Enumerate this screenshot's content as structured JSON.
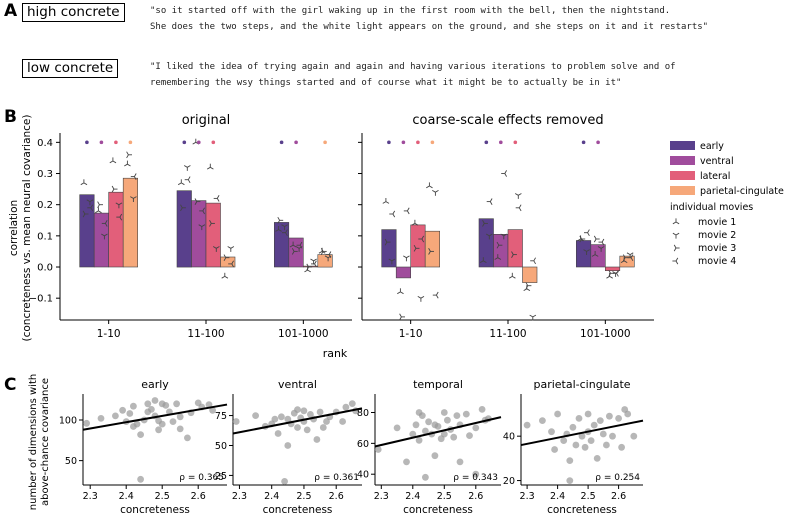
{
  "panel_letters": [
    "A",
    "B",
    "C"
  ],
  "quotes": [
    {
      "label": "high concrete",
      "line1": "\"so it started off with the girl waking up in the first room with the bell, then the nightstand.",
      "line2": "She does the two steps, and the white light appears on the ground, and she steps on it and it restarts\""
    },
    {
      "label": "low concrete",
      "line1": "\"I liked the idea of trying again and again and having various iterations to problem solve and of",
      "line2": "remembering the wsy things started and of course what it might be to actually be in it\""
    }
  ],
  "chart_data": [
    {
      "type": "bar",
      "title": "original",
      "ylabel": "correlation\n(concreteness vs. mean neural covariance)",
      "xlabel": "rank",
      "categories": [
        "1-10",
        "11-100",
        "101-1000"
      ],
      "ylim": [
        -0.17,
        0.43
      ],
      "yticks": [
        -0.1,
        0.0,
        0.1,
        0.2,
        0.3,
        0.4
      ],
      "series": [
        {
          "name": "early",
          "color": "#59408c",
          "values": [
            0.232,
            0.245,
            0.143
          ],
          "movies": [
            [
              0.27,
              0.21,
              0.17,
              0.19
            ],
            [
              0.27,
              0.32,
              0.19,
              0.28
            ],
            [
              0.12,
              0.13,
              0.15,
              0.11
            ]
          ]
        },
        {
          "name": "ventral",
          "color": "#a04c9c",
          "values": [
            0.173,
            0.213,
            0.093
          ],
          "movies": [
            [
              0.18,
              0.1,
              0.2,
              0.14
            ],
            [
              0.4,
              0.13,
              0.21,
              0.18
            ],
            [
              0.07,
              0.06,
              0.05,
              0.07
            ]
          ]
        },
        {
          "name": "lateral",
          "color": "#e25f7a",
          "values": [
            0.24,
            0.205,
            0.003
          ],
          "movies": [
            [
              0.34,
              0.2,
              0.25,
              0.16
            ],
            [
              0.32,
              0.06,
              0.14,
              0.22
            ],
            [
              -0.01,
              0.02,
              0.0,
              0.01
            ]
          ]
        },
        {
          "name": "parietal-cingulate",
          "color": "#f6a87a",
          "values": [
            0.285,
            0.032,
            0.04
          ],
          "movies": [
            [
              0.33,
              0.22,
              0.36,
              0.29
            ],
            [
              -0.03,
              0.06,
              0.03,
              0.01
            ],
            [
              0.05,
              0.03,
              0.05,
              0.04
            ]
          ]
        }
      ],
      "significance": [
        [
          true,
          true,
          true,
          true
        ],
        [
          true,
          true,
          true,
          false
        ],
        [
          true,
          true,
          false,
          true
        ]
      ]
    },
    {
      "type": "bar",
      "title": "coarse-scale effects removed",
      "categories": [
        "1-10",
        "11-100",
        "101-1000"
      ],
      "ylim": [
        -0.17,
        0.43
      ],
      "series": [
        {
          "name": "early",
          "color": "#59408c",
          "values": [
            0.12,
            0.155,
            0.085
          ],
          "movies": [
            [
              0.21,
              0.02,
              0.08,
              0.17
            ],
            [
              0.02,
              0.1,
              0.14,
              0.21
            ],
            [
              0.09,
              0.05,
              0.09,
              0.11
            ]
          ]
        },
        {
          "name": "ventral",
          "color": "#a04c9c",
          "values": [
            -0.035,
            0.105,
            0.072
          ],
          "movies": [
            [
              -0.08,
              0.03,
              -0.16,
              0.18
            ],
            [
              0.03,
              0.1,
              0.07,
              0.3
            ],
            [
              0.04,
              0.06,
              0.09,
              0.08
            ]
          ]
        },
        {
          "name": "lateral",
          "color": "#e25f7a",
          "values": [
            0.135,
            0.12,
            -0.012
          ],
          "movies": [
            [
              0.14,
              -0.1,
              0.06,
              0.09
            ],
            [
              -0.03,
              0.23,
              0.04,
              0.19
            ],
            [
              -0.03,
              -0.02,
              -0.02,
              -0.02
            ]
          ]
        },
        {
          "name": "parietal-cingulate",
          "color": "#f6a87a",
          "values": [
            0.115,
            -0.05,
            0.035
          ],
          "movies": [
            [
              0.26,
              0.24,
              0.05,
              -0.09
            ],
            [
              -0.07,
              -0.16,
              -0.06,
              0.02
            ],
            [
              0.02,
              0.04,
              0.03,
              0.03
            ]
          ]
        }
      ],
      "significance": [
        [
          true,
          true,
          true,
          true
        ],
        [
          true,
          true,
          true,
          false
        ],
        [
          true,
          true,
          false,
          false
        ]
      ]
    },
    {
      "type": "scatter",
      "title": "early",
      "xlabel": "concreteness",
      "ylabel": "number of dimensions with\nabove-chance covariance",
      "xlim": [
        2.28,
        2.68
      ],
      "ylim": [
        20,
        132
      ],
      "xticks": [
        2.3,
        2.4,
        2.5,
        2.6
      ],
      "yticks": [
        50,
        100
      ],
      "annotation": "ρ = 0.365",
      "fit": [
        [
          2.28,
          88
        ],
        [
          2.68,
          119
        ]
      ],
      "points": [
        [
          2.29,
          96
        ],
        [
          2.33,
          102
        ],
        [
          2.37,
          105
        ],
        [
          2.39,
          112
        ],
        [
          2.4,
          98
        ],
        [
          2.41,
          108
        ],
        [
          2.42,
          117
        ],
        [
          2.42,
          92
        ],
        [
          2.43,
          95
        ],
        [
          2.44,
          82
        ],
        [
          2.44,
          27
        ],
        [
          2.45,
          100
        ],
        [
          2.46,
          110
        ],
        [
          2.46,
          120
        ],
        [
          2.47,
          113
        ],
        [
          2.48,
          124
        ],
        [
          2.48,
          105
        ],
        [
          2.49,
          99
        ],
        [
          2.49,
          88
        ],
        [
          2.5,
          120
        ],
        [
          2.5,
          95
        ],
        [
          2.51,
          118
        ],
        [
          2.52,
          110
        ],
        [
          2.53,
          98
        ],
        [
          2.54,
          120
        ],
        [
          2.55,
          89
        ],
        [
          2.55,
          104
        ],
        [
          2.57,
          78
        ],
        [
          2.58,
          109
        ],
        [
          2.6,
          121
        ],
        [
          2.61,
          116
        ],
        [
          2.63,
          119
        ],
        [
          2.64,
          112
        ]
      ]
    },
    {
      "type": "scatter",
      "title": "ventral",
      "xlabel": "concreteness",
      "xlim": [
        2.28,
        2.68
      ],
      "ylim": [
        17,
        93
      ],
      "xticks": [
        2.3,
        2.4,
        2.5,
        2.6
      ],
      "yticks": [
        25,
        50,
        75
      ],
      "annotation": "ρ = 0.361",
      "fit": [
        [
          2.28,
          60
        ],
        [
          2.68,
          81
        ]
      ],
      "points": [
        [
          2.29,
          70
        ],
        [
          2.35,
          75
        ],
        [
          2.38,
          66
        ],
        [
          2.4,
          68
        ],
        [
          2.41,
          72
        ],
        [
          2.42,
          60
        ],
        [
          2.43,
          74
        ],
        [
          2.44,
          20
        ],
        [
          2.45,
          72
        ],
        [
          2.45,
          50
        ],
        [
          2.46,
          68
        ],
        [
          2.47,
          77
        ],
        [
          2.48,
          80
        ],
        [
          2.48,
          65
        ],
        [
          2.49,
          73
        ],
        [
          2.5,
          79
        ],
        [
          2.5,
          70
        ],
        [
          2.51,
          63
        ],
        [
          2.52,
          76
        ],
        [
          2.53,
          72
        ],
        [
          2.54,
          55
        ],
        [
          2.55,
          78
        ],
        [
          2.56,
          65
        ],
        [
          2.57,
          70
        ],
        [
          2.58,
          74
        ],
        [
          2.6,
          78
        ],
        [
          2.62,
          70
        ],
        [
          2.63,
          82
        ],
        [
          2.65,
          85
        ],
        [
          2.66,
          79
        ]
      ]
    },
    {
      "type": "scatter",
      "title": "temporal",
      "xlabel": "concreteness",
      "xlim": [
        2.28,
        2.68
      ],
      "ylim": [
        33,
        92
      ],
      "xticks": [
        2.3,
        2.4,
        2.5,
        2.6
      ],
      "yticks": [
        40,
        60,
        80
      ],
      "annotation": "ρ = 0.343",
      "fit": [
        [
          2.28,
          58
        ],
        [
          2.68,
          77
        ]
      ],
      "points": [
        [
          2.29,
          56
        ],
        [
          2.35,
          70
        ],
        [
          2.38,
          48
        ],
        [
          2.4,
          66
        ],
        [
          2.41,
          72
        ],
        [
          2.42,
          80
        ],
        [
          2.42,
          62
        ],
        [
          2.43,
          78
        ],
        [
          2.44,
          38
        ],
        [
          2.44,
          68
        ],
        [
          2.45,
          74
        ],
        [
          2.46,
          66
        ],
        [
          2.47,
          72
        ],
        [
          2.47,
          52
        ],
        [
          2.48,
          71
        ],
        [
          2.49,
          63
        ],
        [
          2.5,
          80
        ],
        [
          2.5,
          66
        ],
        [
          2.51,
          75
        ],
        [
          2.52,
          69
        ],
        [
          2.53,
          64
        ],
        [
          2.54,
          78
        ],
        [
          2.55,
          48
        ],
        [
          2.55,
          72
        ],
        [
          2.57,
          79
        ],
        [
          2.58,
          65
        ],
        [
          2.6,
          70
        ],
        [
          2.6,
          40
        ],
        [
          2.62,
          82
        ],
        [
          2.63,
          75
        ],
        [
          2.64,
          76
        ]
      ]
    },
    {
      "type": "scatter",
      "title": "parietal-cingulate",
      "xlabel": "concreteness",
      "xlim": [
        2.28,
        2.68
      ],
      "ylim": [
        18,
        59
      ],
      "xticks": [
        2.3,
        2.4,
        2.5,
        2.6
      ],
      "yticks": [
        20,
        40
      ],
      "annotation": "ρ = 0.254",
      "fit": [
        [
          2.28,
          36
        ],
        [
          2.68,
          47
        ]
      ],
      "points": [
        [
          2.3,
          45
        ],
        [
          2.35,
          47
        ],
        [
          2.38,
          42
        ],
        [
          2.39,
          34
        ],
        [
          2.4,
          50
        ],
        [
          2.42,
          38
        ],
        [
          2.43,
          41
        ],
        [
          2.44,
          29
        ],
        [
          2.44,
          20
        ],
        [
          2.45,
          44
        ],
        [
          2.46,
          36
        ],
        [
          2.47,
          48
        ],
        [
          2.48,
          40
        ],
        [
          2.49,
          35
        ],
        [
          2.5,
          50
        ],
        [
          2.5,
          42
        ],
        [
          2.51,
          38
        ],
        [
          2.52,
          45
        ],
        [
          2.53,
          30
        ],
        [
          2.54,
          47
        ],
        [
          2.55,
          41
        ],
        [
          2.56,
          36
        ],
        [
          2.57,
          49
        ],
        [
          2.58,
          40
        ],
        [
          2.6,
          48
        ],
        [
          2.61,
          35
        ],
        [
          2.62,
          52
        ],
        [
          2.63,
          50
        ],
        [
          2.65,
          40
        ]
      ]
    }
  ],
  "legend": {
    "title": "individual movies",
    "movies": [
      "movie 1",
      "movie 2",
      "movie 3",
      "movie 4"
    ]
  },
  "colors": {
    "scatter_point": "#999999",
    "fit_line": "#000000"
  }
}
